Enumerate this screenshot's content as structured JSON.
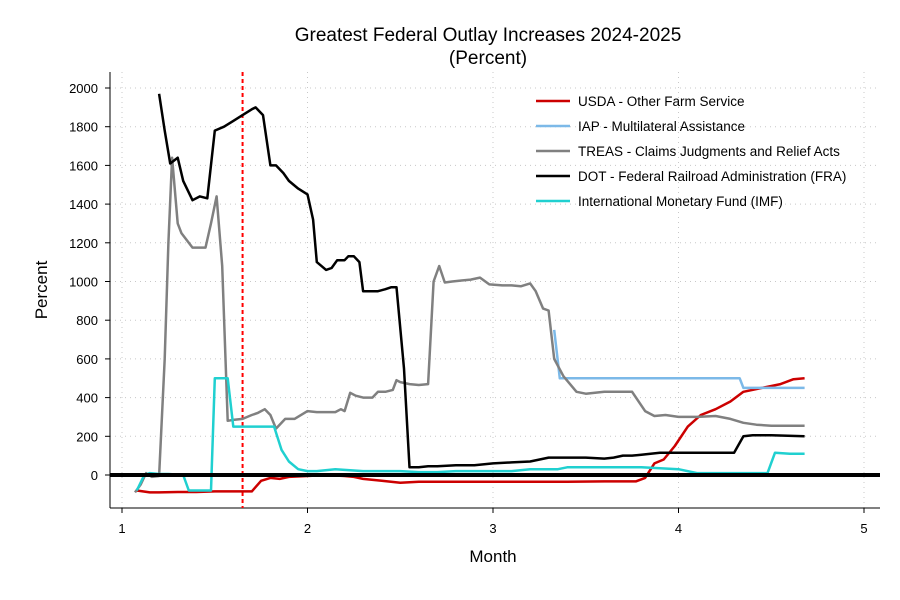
{
  "chart_data": {
    "type": "line",
    "title": "Greatest Federal Outlay Increases 2024-2025",
    "subtitle": "(Percent)",
    "xlabel": "Month",
    "ylabel": "Percent",
    "xlim": [
      1,
      5
    ],
    "ylim": [
      -180,
      2060
    ],
    "xticks": [
      1,
      2,
      3,
      4,
      5
    ],
    "yticks": [
      0,
      200,
      400,
      600,
      800,
      1000,
      1200,
      1400,
      1600,
      1800,
      2000
    ],
    "reference_line": {
      "x": 1.65,
      "color": "#ff0000",
      "style": "dotted"
    },
    "zero_line": {
      "y": 0,
      "color": "#000000"
    },
    "legend_position": "top-right",
    "series": [
      {
        "name": "USDA - Other Farm Service",
        "color": "#cc0000",
        "x": [
          1.08,
          1.15,
          1.2,
          1.3,
          1.4,
          1.5,
          1.6,
          1.7,
          1.75,
          1.8,
          1.85,
          1.9,
          2.0,
          2.1,
          2.2,
          2.25,
          2.3,
          2.4,
          2.5,
          2.6,
          2.7,
          2.8,
          3.0,
          3.2,
          3.4,
          3.6,
          3.77,
          3.82,
          3.87,
          3.92,
          3.98,
          4.05,
          4.12,
          4.2,
          4.28,
          4.35,
          4.45,
          4.55,
          4.62,
          4.68
        ],
        "y": [
          -80,
          -90,
          -90,
          -88,
          -88,
          -85,
          -85,
          -85,
          -30,
          -15,
          -20,
          -10,
          -5,
          0,
          -5,
          -10,
          -20,
          -30,
          -40,
          -35,
          -35,
          -35,
          -35,
          -35,
          -35,
          -33,
          -33,
          -15,
          60,
          80,
          150,
          250,
          310,
          340,
          380,
          430,
          450,
          470,
          495,
          500
        ]
      },
      {
        "name": "IAP - Multilateral Assistance",
        "color": "#7cb9e8",
        "x": [
          3.33,
          3.36,
          3.5,
          3.8,
          4.0,
          4.2,
          4.33,
          4.35,
          4.5,
          4.68
        ],
        "y": [
          750,
          500,
          500,
          500,
          500,
          500,
          500,
          450,
          450,
          450
        ]
      },
      {
        "name": "TREAS - Claims Judgments and Relief Acts",
        "color": "#808080",
        "x": [
          1.07,
          1.1,
          1.13,
          1.16,
          1.2,
          1.23,
          1.25,
          1.27,
          1.3,
          1.32,
          1.38,
          1.42,
          1.45,
          1.48,
          1.51,
          1.54,
          1.57,
          1.6,
          1.65,
          1.7,
          1.73,
          1.77,
          1.8,
          1.83,
          1.88,
          1.93,
          2.0,
          2.05,
          2.1,
          2.15,
          2.18,
          2.2,
          2.23,
          2.26,
          2.3,
          2.35,
          2.38,
          2.42,
          2.46,
          2.48,
          2.5,
          2.55,
          2.6,
          2.65,
          2.68,
          2.71,
          2.74,
          2.78,
          2.83,
          2.88,
          2.93,
          2.98,
          3.05,
          3.1,
          3.15,
          3.2,
          3.23,
          3.27,
          3.3,
          3.33,
          3.38,
          3.45,
          3.5,
          3.6,
          3.7,
          3.75,
          3.82,
          3.87,
          3.93,
          4.0,
          4.1,
          4.2,
          4.28,
          4.35,
          4.42,
          4.5,
          4.6,
          4.68
        ],
        "y": [
          -90,
          -50,
          10,
          -10,
          -5,
          600,
          1200,
          1640,
          1300,
          1250,
          1175,
          1175,
          1175,
          1300,
          1440,
          1080,
          280,
          285,
          290,
          310,
          320,
          340,
          310,
          240,
          290,
          290,
          330,
          325,
          325,
          325,
          340,
          330,
          425,
          410,
          400,
          400,
          430,
          430,
          440,
          490,
          480,
          470,
          465,
          470,
          1000,
          1080,
          995,
          1000,
          1005,
          1010,
          1020,
          985,
          980,
          980,
          975,
          990,
          950,
          860,
          850,
          600,
          510,
          430,
          420,
          430,
          430,
          430,
          330,
          305,
          310,
          300,
          300,
          305,
          290,
          270,
          260,
          255,
          255,
          255
        ]
      },
      {
        "name": "DOT - Federal Railroad Administration (FRA)",
        "color": "#000000",
        "x": [
          1.2,
          1.23,
          1.26,
          1.3,
          1.33,
          1.38,
          1.42,
          1.46,
          1.5,
          1.55,
          1.6,
          1.65,
          1.7,
          1.72,
          1.76,
          1.8,
          1.83,
          1.87,
          1.9,
          1.95,
          2.0,
          2.03,
          2.05,
          2.1,
          2.13,
          2.16,
          2.2,
          2.22,
          2.25,
          2.28,
          2.3,
          2.35,
          2.38,
          2.42,
          2.45,
          2.48,
          2.52,
          2.55,
          2.6,
          2.65,
          2.7,
          2.8,
          2.9,
          3.0,
          3.1,
          3.2,
          3.3,
          3.4,
          3.5,
          3.6,
          3.65,
          3.7,
          3.75,
          3.8,
          3.9,
          4.0,
          4.1,
          4.2,
          4.3,
          4.35,
          4.4,
          4.5,
          4.68
        ],
        "y": [
          1970,
          1780,
          1610,
          1640,
          1520,
          1420,
          1440,
          1430,
          1780,
          1800,
          1830,
          1860,
          1890,
          1900,
          1860,
          1600,
          1600,
          1560,
          1520,
          1480,
          1450,
          1320,
          1100,
          1060,
          1070,
          1110,
          1110,
          1130,
          1130,
          1100,
          950,
          950,
          950,
          960,
          970,
          970,
          550,
          40,
          40,
          45,
          45,
          50,
          50,
          60,
          65,
          70,
          90,
          90,
          90,
          85,
          90,
          100,
          100,
          105,
          115,
          115,
          115,
          115,
          115,
          200,
          205,
          205,
          200
        ]
      },
      {
        "name": "International Monetary Fund (IMF)",
        "color": "#20d0d0",
        "x": [
          1.08,
          1.12,
          1.15,
          1.2,
          1.25,
          1.33,
          1.36,
          1.4,
          1.45,
          1.48,
          1.5,
          1.53,
          1.57,
          1.6,
          1.65,
          1.7,
          1.76,
          1.82,
          1.86,
          1.9,
          1.95,
          2.0,
          2.05,
          2.15,
          2.3,
          2.5,
          2.6,
          2.7,
          2.8,
          2.9,
          3.0,
          3.1,
          3.2,
          3.3,
          3.35,
          3.4,
          3.5,
          3.6,
          3.7,
          3.8,
          3.9,
          4.0,
          4.1,
          4.2,
          4.3,
          4.35,
          4.4,
          4.45,
          4.48,
          4.52,
          4.6,
          4.68
        ],
        "y": [
          -80,
          0,
          10,
          5,
          5,
          0,
          -80,
          -80,
          -80,
          -80,
          500,
          500,
          500,
          250,
          250,
          250,
          250,
          250,
          130,
          70,
          30,
          20,
          20,
          30,
          20,
          20,
          15,
          15,
          20,
          20,
          20,
          20,
          30,
          30,
          30,
          40,
          40,
          40,
          40,
          40,
          35,
          30,
          10,
          10,
          10,
          10,
          10,
          10,
          10,
          115,
          110,
          110
        ]
      }
    ]
  }
}
